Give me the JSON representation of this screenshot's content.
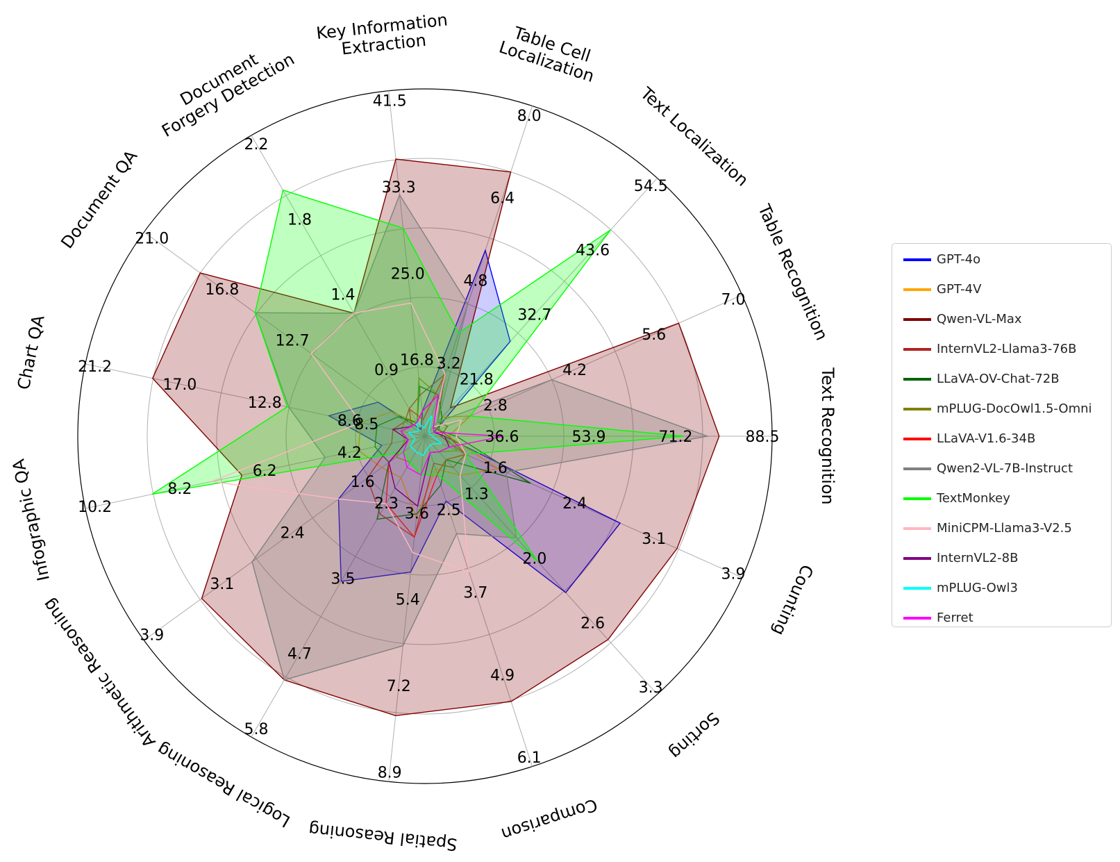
{
  "chart_data": {
    "type": "radar",
    "axes": [
      {
        "label": [
          "Text Recognition"
        ],
        "ticks": [
          "36.6",
          "53.9",
          "71.2",
          "88.5"
        ],
        "max": 88.5
      },
      {
        "label": [
          "Table Recognition"
        ],
        "ticks": [
          "2.8",
          "4.2",
          "5.6",
          "7.0"
        ],
        "max": 7.0
      },
      {
        "label": [
          "Text Localization"
        ],
        "ticks": [
          "21.8",
          "32.7",
          "43.6",
          "54.5"
        ],
        "max": 54.5
      },
      {
        "label": [
          "Table Cell",
          "Localization"
        ],
        "ticks": [
          "3.2",
          "4.8",
          "6.4",
          "8.0"
        ],
        "max": 8.0
      },
      {
        "label": [
          "Key Information",
          "Extraction"
        ],
        "ticks": [
          "16.8",
          "25.0",
          "33.3",
          "41.5"
        ],
        "max": 41.5
      },
      {
        "label": [
          "Document",
          "Forgery Detection"
        ],
        "ticks": [
          "0.9",
          "1.4",
          "1.8",
          "2.2"
        ],
        "max": 2.2
      },
      {
        "label": [
          "Document QA"
        ],
        "ticks": [
          "12.7",
          "16.8",
          "21.0"
        ],
        "max": 21.0
      },
      {
        "label": [
          "Chart QA"
        ],
        "ticks": [
          "8.5",
          "8.6",
          "12.8",
          "17.0",
          "21.2"
        ],
        "max": 21.2
      },
      {
        "label": [
          "Infographic QA"
        ],
        "ticks": [
          "4.2",
          "6.2",
          "8.2",
          "10.2"
        ],
        "max": 10.2
      },
      {
        "label": [
          "Arithmetic Reasoning"
        ],
        "ticks": [
          "1.6",
          "2.4",
          "3.1",
          "3.9"
        ],
        "max": 3.9
      },
      {
        "label": [
          "Logical Reasoning"
        ],
        "ticks": [
          "2.3",
          "3.5",
          "4.7",
          "5.8"
        ],
        "max": 5.8
      },
      {
        "label": [
          "Spatial Reasoning"
        ],
        "ticks": [
          "3.6",
          "5.4",
          "7.2",
          "8.9"
        ],
        "max": 8.9
      },
      {
        "label": [
          "Comparison"
        ],
        "ticks": [
          "2.5",
          "3.7",
          "4.9",
          "6.1"
        ],
        "max": 6.1
      },
      {
        "label": [
          "Sorting"
        ],
        "ticks": [
          "1.3",
          "2.0",
          "2.6",
          "3.3"
        ],
        "max": 3.3
      },
      {
        "label": [
          "Counting"
        ],
        "ticks": [
          "1.6",
          "2.4",
          "3.1",
          "3.9"
        ],
        "max": 3.9
      }
    ],
    "series": [
      {
        "name": "GPT-4o",
        "color": "#0000ff",
        "fill": true,
        "fill_opacity": 0.2,
        "values": [
          5,
          0.2,
          20,
          4.5,
          3,
          0.05,
          3.5,
          6,
          1.3,
          1.2,
          2.8,
          3.5,
          1.2,
          2.0,
          2.4
        ]
      },
      {
        "name": "GPT-4V",
        "color": "#ffa500",
        "fill": false,
        "values": [
          6,
          1.0,
          4,
          1.0,
          3,
          0.1,
          2.5,
          4,
          2.0,
          0.6,
          0.8,
          2.1,
          0.6,
          0.5,
          0.9
        ]
      },
      {
        "name": "Qwen-VL-Max",
        "color": "#800000",
        "fill": true,
        "fill_opacity": 0.25,
        "values": [
          75,
          5.6,
          6,
          6.4,
          33.3,
          0.9,
          16.8,
          17.0,
          5.5,
          3.1,
          4.7,
          7.2,
          4.9,
          2.6,
          3.1
        ]
      },
      {
        "name": "InternVL2-Llama3-76B",
        "color": "#b22222",
        "fill": false,
        "values": [
          4,
          0.5,
          3,
          1.5,
          5,
          0.2,
          1.5,
          2,
          1.0,
          0.8,
          1.5,
          2.6,
          0.5,
          0.4,
          0.5
        ]
      },
      {
        "name": "LLaVA-OV-Chat-72B",
        "color": "#006400",
        "fill": false,
        "values": [
          8,
          0.3,
          4,
          1.0,
          6,
          0.1,
          2.0,
          3,
          1.5,
          0.5,
          1.6,
          2.0,
          0.9,
          0.3,
          1.3
        ]
      },
      {
        "name": "mPLUG-DocOwl1.5-Omni",
        "color": "#808000",
        "fill": false,
        "values": [
          5,
          0.2,
          2,
          1.0,
          7,
          0.1,
          1.5,
          1.5,
          0.6,
          0.4,
          0.5,
          1.0,
          0.3,
          0.2,
          0.4
        ]
      },
      {
        "name": "LLaVA-V1.6-34B",
        "color": "#ff0000",
        "fill": false,
        "values": [
          6,
          0.3,
          2,
          1.5,
          2,
          0.2,
          1.0,
          1.5,
          0.5,
          0.5,
          1.3,
          2.6,
          0.7,
          0.3,
          0.5
        ]
      },
      {
        "name": "Qwen2-VL-7B-Instruct",
        "color": "#808080",
        "fill": true,
        "fill_opacity": 0.25,
        "values": [
          72,
          2.8,
          3,
          3.2,
          29,
          0.9,
          12.7,
          8.5,
          3.0,
          2.4,
          4.7,
          5.4,
          1.8,
          1.3,
          1.0
        ]
      },
      {
        "name": "TextMonkey",
        "color": "#00ff00",
        "fill": true,
        "fill_opacity": 0.25,
        "values": [
          66,
          1.0,
          43.6,
          2.5,
          25.0,
          1.8,
          12.7,
          8.6,
          8.2,
          0.3,
          0.5,
          1.0,
          0.7,
          1.6,
          0.5
        ]
      },
      {
        "name": "MiniCPM-Llama3-V2.5",
        "color": "#ffb6c1",
        "fill": false,
        "values": [
          8,
          0.8,
          2,
          1.5,
          16,
          0.9,
          8.5,
          4,
          6.4,
          1.2,
          1.3,
          3.0,
          2.5,
          0.5,
          0.5
        ]
      },
      {
        "name": "InternVL2-8B",
        "color": "#800080",
        "fill": false,
        "values": [
          5,
          0.2,
          2,
          1.0,
          3,
          0.1,
          1.0,
          2,
          0.5,
          0.5,
          1.0,
          1.8,
          0.3,
          0.2,
          0.3
        ]
      },
      {
        "name": "mPLUG-Owl3",
        "color": "#00ffff",
        "fill": false,
        "values": [
          2,
          0.1,
          1,
          0.5,
          1,
          0.1,
          0.5,
          1,
          0.3,
          0.2,
          0.3,
          0.5,
          0.2,
          0.1,
          0.2
        ]
      },
      {
        "name": "Ferret",
        "color": "#ff00ff",
        "fill": false,
        "values": [
          20,
          0.2,
          2,
          1.0,
          3,
          0.1,
          1.0,
          1.5,
          0.5,
          0.3,
          0.6,
          1.0,
          0.3,
          0.2,
          0.3
        ]
      }
    ],
    "grid": true,
    "legend_position": "right"
  }
}
